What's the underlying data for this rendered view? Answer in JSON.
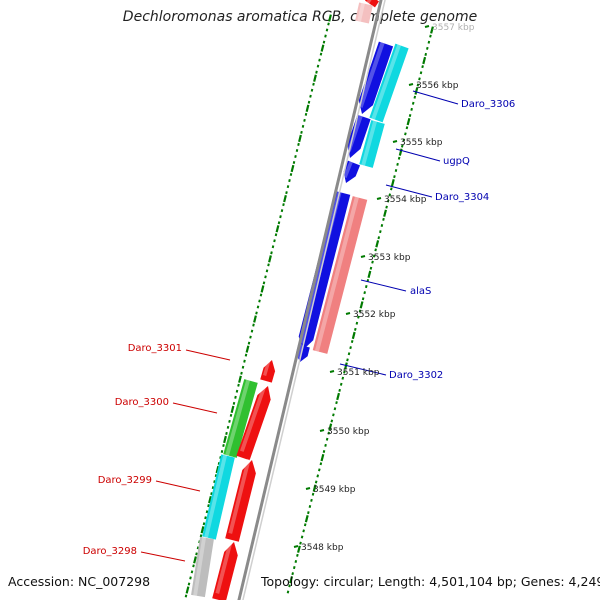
{
  "title": "Dechloromonas aromatica RCB, complete genome",
  "footer": {
    "accession": "Accession: NC_007298",
    "topology": "Topology: circular; Length: 4,501,104 bp; Genes: 4,249"
  },
  "colors": {
    "backbone": "#8a8a8a",
    "tick": "#007a00",
    "forward_label": "#0000b0",
    "reverse_label": "#cc0000",
    "blue": "#1010e0",
    "cyan": "#10d8e0",
    "red": "#ee1010",
    "pink": "#f08080",
    "green": "#30c030",
    "gray": "#bdbdbd"
  },
  "ruler": [
    {
      "label": "3557 kbp",
      "faded": true
    },
    {
      "label": "3556 kbp"
    },
    {
      "label": "3555 kbp"
    },
    {
      "label": "3554 kbp"
    },
    {
      "label": "3553 kbp"
    },
    {
      "label": "3552 kbp"
    },
    {
      "label": "3551 kbp"
    },
    {
      "label": "3550 kbp"
    },
    {
      "label": "3549 kbp"
    },
    {
      "label": "3548 kbp"
    }
  ],
  "gene_labels": [
    {
      "text": "Daro_3306",
      "strand": "forward"
    },
    {
      "text": "ugpQ",
      "strand": "forward"
    },
    {
      "text": "Daro_3304",
      "strand": "forward"
    },
    {
      "text": "alaS",
      "strand": "forward"
    },
    {
      "text": "Daro_3302",
      "strand": "forward"
    },
    {
      "text": "Daro_3301",
      "strand": "reverse"
    },
    {
      "text": "Daro_3300",
      "strand": "reverse"
    },
    {
      "text": "Daro_3299",
      "strand": "reverse"
    },
    {
      "text": "Daro_3298",
      "strand": "reverse"
    }
  ]
}
